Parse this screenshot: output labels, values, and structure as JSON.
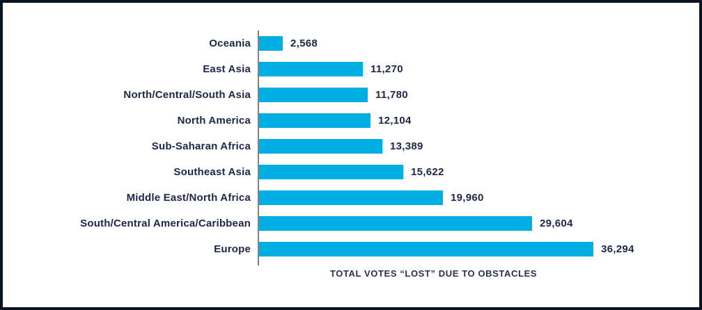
{
  "frame": {
    "border_color": "#0a1322",
    "background": "#ffffff"
  },
  "chart_data": {
    "type": "bar",
    "orientation": "horizontal",
    "title": "",
    "xlabel": "TOTAL VOTES “LOST” DUE TO OBSTACLES",
    "ylabel": "",
    "categories": [
      "Oceania",
      "East Asia",
      "North/Central/South Asia",
      "North America",
      "Sub-Saharan Africa",
      "Southeast Asia",
      "Middle East/North Africa",
      "South/Central America/Caribbean",
      "Europe"
    ],
    "values": [
      2568,
      11270,
      11780,
      12104,
      13389,
      15622,
      19960,
      29604,
      36294
    ],
    "value_labels": [
      "2,568",
      "11,270",
      "11,780",
      "12,104",
      "13,389",
      "15,622",
      "19,960",
      "29,604",
      "36,294"
    ],
    "xlim": [
      0,
      36294
    ],
    "grid": false,
    "legend": false,
    "bar_color": "#00aee4",
    "label_color": "#1c2749",
    "axis_line_color": "#808080"
  }
}
